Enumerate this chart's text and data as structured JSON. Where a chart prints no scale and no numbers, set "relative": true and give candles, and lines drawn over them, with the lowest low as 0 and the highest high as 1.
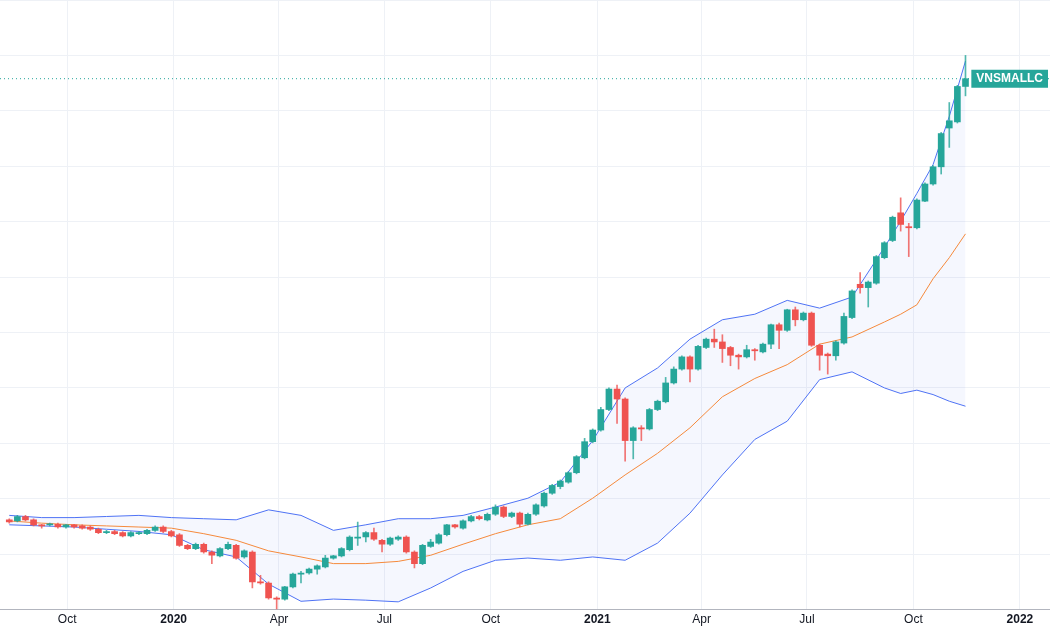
{
  "chart_data": {
    "type": "candlestick",
    "relative": true,
    "grid": true,
    "legend": false,
    "xlim": [
      "2019-08-04",
      "2022-01-27"
    ],
    "xticks": [
      {
        "value": "2019-10-01",
        "label": "Oct"
      },
      {
        "value": "2020-01-01",
        "label": "2020"
      },
      {
        "value": "2020-04-01",
        "label": "Apr"
      },
      {
        "value": "2020-07-01",
        "label": "Jul"
      },
      {
        "value": "2020-10-01",
        "label": "Oct"
      },
      {
        "value": "2021-01-01",
        "label": "2021"
      },
      {
        "value": "2021-04-01",
        "label": "Apr"
      },
      {
        "value": "2021-07-01",
        "label": "Jul"
      },
      {
        "value": "2021-10-01",
        "label": "Oct"
      },
      {
        "value": "2022-01-01",
        "label": "2022"
      }
    ],
    "x": [
      "2019-08-12",
      "2019-08-19",
      "2019-08-26",
      "2019-09-02",
      "2019-09-09",
      "2019-09-16",
      "2019-09-23",
      "2019-09-30",
      "2019-10-07",
      "2019-10-14",
      "2019-10-21",
      "2019-10-28",
      "2019-11-04",
      "2019-11-11",
      "2019-11-18",
      "2019-11-25",
      "2019-12-02",
      "2019-12-09",
      "2019-12-16",
      "2019-12-23",
      "2019-12-30",
      "2020-01-06",
      "2020-01-13",
      "2020-01-20",
      "2020-01-27",
      "2020-02-03",
      "2020-02-10",
      "2020-02-17",
      "2020-02-24",
      "2020-03-02",
      "2020-03-09",
      "2020-03-16",
      "2020-03-23",
      "2020-03-30",
      "2020-04-06",
      "2020-04-13",
      "2020-04-20",
      "2020-04-27",
      "2020-05-04",
      "2020-05-11",
      "2020-05-18",
      "2020-05-25",
      "2020-06-01",
      "2020-06-08",
      "2020-06-15",
      "2020-06-22",
      "2020-06-29",
      "2020-07-06",
      "2020-07-13",
      "2020-07-20",
      "2020-07-27",
      "2020-08-03",
      "2020-08-10",
      "2020-08-17",
      "2020-08-24",
      "2020-08-31",
      "2020-09-07",
      "2020-09-14",
      "2020-09-21",
      "2020-09-28",
      "2020-10-05",
      "2020-10-12",
      "2020-10-19",
      "2020-10-26",
      "2020-11-02",
      "2020-11-09",
      "2020-11-16",
      "2020-11-23",
      "2020-11-30",
      "2020-12-07",
      "2020-12-14",
      "2020-12-21",
      "2020-12-28",
      "2021-01-04",
      "2021-01-11",
      "2021-01-18",
      "2021-01-25",
      "2021-02-01",
      "2021-02-08",
      "2021-02-15",
      "2021-02-22",
      "2021-03-01",
      "2021-03-08",
      "2021-03-15",
      "2021-03-22",
      "2021-03-29",
      "2021-04-05",
      "2021-04-12",
      "2021-04-19",
      "2021-04-26",
      "2021-05-03",
      "2021-05-10",
      "2021-05-17",
      "2021-05-24",
      "2021-05-31",
      "2021-06-07",
      "2021-06-14",
      "2021-06-21",
      "2021-06-28",
      "2021-07-05",
      "2021-07-12",
      "2021-07-19",
      "2021-07-26",
      "2021-08-02",
      "2021-08-09",
      "2021-08-16",
      "2021-08-23",
      "2021-08-30",
      "2021-09-06",
      "2021-09-13",
      "2021-09-20",
      "2021-09-27",
      "2021-10-04",
      "2021-10-11",
      "2021-10-18",
      "2021-10-25",
      "2021-11-01",
      "2021-11-08",
      "2021-11-15"
    ],
    "ohlc": [
      [
        0.162,
        0.164,
        0.156,
        0.158
      ],
      [
        0.16,
        0.17,
        0.158,
        0.168
      ],
      [
        0.168,
        0.17,
        0.16,
        0.162
      ],
      [
        0.162,
        0.164,
        0.151,
        0.153
      ],
      [
        0.153,
        0.154,
        0.147,
        0.151
      ],
      [
        0.153,
        0.156,
        0.151,
        0.154
      ],
      [
        0.154,
        0.156,
        0.147,
        0.149
      ],
      [
        0.149,
        0.154,
        0.147,
        0.153
      ],
      [
        0.153,
        0.154,
        0.147,
        0.149
      ],
      [
        0.151,
        0.153,
        0.145,
        0.147
      ],
      [
        0.149,
        0.151,
        0.143,
        0.145
      ],
      [
        0.145,
        0.147,
        0.137,
        0.139
      ],
      [
        0.139,
        0.143,
        0.137,
        0.141
      ],
      [
        0.141,
        0.143,
        0.135,
        0.137
      ],
      [
        0.139,
        0.141,
        0.131,
        0.133
      ],
      [
        0.133,
        0.141,
        0.131,
        0.139
      ],
      [
        0.137,
        0.141,
        0.135,
        0.139
      ],
      [
        0.137,
        0.145,
        0.135,
        0.143
      ],
      [
        0.143,
        0.151,
        0.141,
        0.149
      ],
      [
        0.149,
        0.151,
        0.139,
        0.141
      ],
      [
        0.141,
        0.143,
        0.131,
        0.133
      ],
      [
        0.135,
        0.137,
        0.114,
        0.116
      ],
      [
        0.116,
        0.118,
        0.108,
        0.11
      ],
      [
        0.11,
        0.12,
        0.108,
        0.118
      ],
      [
        0.118,
        0.12,
        0.102,
        0.104
      ],
      [
        0.104,
        0.106,
        0.083,
        0.098
      ],
      [
        0.097,
        0.112,
        0.095,
        0.11
      ],
      [
        0.11,
        0.122,
        0.108,
        0.118
      ],
      [
        0.116,
        0.118,
        0.091,
        0.093
      ],
      [
        0.095,
        0.108,
        0.093,
        0.106
      ],
      [
        0.104,
        0.106,
        0.039,
        0.05
      ],
      [
        0.05,
        0.062,
        0.046,
        0.048
      ],
      [
        0.048,
        0.05,
        0.019,
        0.021
      ],
      [
        0.021,
        0.023,
        0,
        0.019
      ],
      [
        0.019,
        0.042,
        0.017,
        0.041
      ],
      [
        0.041,
        0.066,
        0.039,
        0.064
      ],
      [
        0.064,
        0.069,
        0.048,
        0.066
      ],
      [
        0.066,
        0.075,
        0.064,
        0.073
      ],
      [
        0.073,
        0.081,
        0.064,
        0.079
      ],
      [
        0.077,
        0.098,
        0.075,
        0.093
      ],
      [
        0.093,
        0.098,
        0.091,
        0.097
      ],
      [
        0.097,
        0.112,
        0.095,
        0.11
      ],
      [
        0.108,
        0.133,
        0.106,
        0.131
      ],
      [
        0.129,
        0.158,
        0.116,
        0.131
      ],
      [
        0.131,
        0.141,
        0.122,
        0.139
      ],
      [
        0.139,
        0.147,
        0.125,
        0.127
      ],
      [
        0.125,
        0.127,
        0.104,
        0.118
      ],
      [
        0.118,
        0.131,
        0.116,
        0.129
      ],
      [
        0.127,
        0.133,
        0.125,
        0.131
      ],
      [
        0.131,
        0.133,
        0.102,
        0.104
      ],
      [
        0.104,
        0.106,
        0.075,
        0.083
      ],
      [
        0.083,
        0.118,
        0.081,
        0.116
      ],
      [
        0.114,
        0.127,
        0.112,
        0.122
      ],
      [
        0.12,
        0.137,
        0.118,
        0.135
      ],
      [
        0.135,
        0.154,
        0.133,
        0.153
      ],
      [
        0.153,
        0.154,
        0.147,
        0.149
      ],
      [
        0.147,
        0.162,
        0.145,
        0.16
      ],
      [
        0.16,
        0.17,
        0.158,
        0.168
      ],
      [
        0.168,
        0.17,
        0.162,
        0.164
      ],
      [
        0.162,
        0.174,
        0.16,
        0.172
      ],
      [
        0.172,
        0.189,
        0.17,
        0.185
      ],
      [
        0.185,
        0.187,
        0.166,
        0.168
      ],
      [
        0.168,
        0.176,
        0.166,
        0.174
      ],
      [
        0.174,
        0.176,
        0.149,
        0.154
      ],
      [
        0.154,
        0.174,
        0.153,
        0.172
      ],
      [
        0.172,
        0.191,
        0.17,
        0.189
      ],
      [
        0.187,
        0.212,
        0.185,
        0.21
      ],
      [
        0.21,
        0.226,
        0.208,
        0.224
      ],
      [
        0.222,
        0.234,
        0.218,
        0.232
      ],
      [
        0.23,
        0.249,
        0.228,
        0.247
      ],
      [
        0.247,
        0.278,
        0.245,
        0.276
      ],
      [
        0.274,
        0.309,
        0.272,
        0.303
      ],
      [
        0.303,
        0.326,
        0.301,
        0.324
      ],
      [
        0.324,
        0.365,
        0.322,
        0.361
      ],
      [
        0.361,
        0.4,
        0.359,
        0.398
      ],
      [
        0.398,
        0.405,
        0.336,
        0.38
      ],
      [
        0.38,
        0.382,
        0.268,
        0.305
      ],
      [
        0.305,
        0.33,
        0.272,
        0.328
      ],
      [
        0.328,
        0.332,
        0.305,
        0.326
      ],
      [
        0.326,
        0.363,
        0.324,
        0.361
      ],
      [
        0.361,
        0.378,
        0.359,
        0.376
      ],
      [
        0.375,
        0.419,
        0.373,
        0.409
      ],
      [
        0.409,
        0.438,
        0.407,
        0.434
      ],
      [
        0.434,
        0.458,
        0.432,
        0.456
      ],
      [
        0.456,
        0.458,
        0.411,
        0.434
      ],
      [
        0.434,
        0.477,
        0.432,
        0.475
      ],
      [
        0.473,
        0.49,
        0.471,
        0.488
      ],
      [
        0.488,
        0.506,
        0.473,
        0.483
      ],
      [
        0.483,
        0.496,
        0.446,
        0.471
      ],
      [
        0.473,
        0.475,
        0.44,
        0.459
      ],
      [
        0.459,
        0.461,
        0.434,
        0.456
      ],
      [
        0.456,
        0.477,
        0.454,
        0.469
      ],
      [
        0.469,
        0.471,
        0.45,
        0.467
      ],
      [
        0.465,
        0.481,
        0.463,
        0.479
      ],
      [
        0.479,
        0.515,
        0.471,
        0.514
      ],
      [
        0.514,
        0.517,
        0.471,
        0.504
      ],
      [
        0.504,
        0.542,
        0.502,
        0.541
      ],
      [
        0.541,
        0.546,
        0.512,
        0.523
      ],
      [
        0.523,
        0.537,
        0.521,
        0.535
      ],
      [
        0.535,
        0.537,
        0.475,
        0.477
      ],
      [
        0.477,
        0.479,
        0.432,
        0.459
      ],
      [
        0.461,
        0.463,
        0.425,
        0.458
      ],
      [
        0.458,
        0.485,
        0.45,
        0.483
      ],
      [
        0.481,
        0.535,
        0.479,
        0.529
      ],
      [
        0.527,
        0.577,
        0.525,
        0.575
      ],
      [
        0.587,
        0.608,
        0.571,
        0.581
      ],
      [
        0.581,
        0.593,
        0.546,
        0.591
      ],
      [
        0.589,
        0.639,
        0.587,
        0.637
      ],
      [
        0.635,
        0.664,
        0.633,
        0.662
      ],
      [
        0.666,
        0.71,
        0.664,
        0.708
      ],
      [
        0.716,
        0.743,
        0.683,
        0.695
      ],
      [
        0.691,
        0.697,
        0.637,
        0.689
      ],
      [
        0.689,
        0.741,
        0.687,
        0.739
      ],
      [
        0.737,
        0.77,
        0.736,
        0.768
      ],
      [
        0.768,
        0.801,
        0.766,
        0.799
      ],
      [
        0.799,
        0.861,
        0.786,
        0.859
      ],
      [
        0.869,
        0.915,
        0.834,
        0.882
      ],
      [
        0.88,
        0.946,
        0.878,
        0.944
      ],
      [
        0.944,
        1,
        0.927,
        0.958
      ]
    ],
    "colors": [
      "#ef5350",
      "#26a69a",
      "#ef5350",
      "#ef5350",
      "#ef5350",
      "#26a69a",
      "#ef5350",
      "#26a69a",
      "#ef5350",
      "#ef5350",
      "#ef5350",
      "#ef5350",
      "#26a69a",
      "#ef5350",
      "#ef5350",
      "#26a69a",
      "#26a69a",
      "#26a69a",
      "#26a69a",
      "#ef5350",
      "#ef5350",
      "#ef5350",
      "#ef5350",
      "#26a69a",
      "#ef5350",
      "#ef5350",
      "#26a69a",
      "#26a69a",
      "#ef5350",
      "#26a69a",
      "#ef5350",
      "#ef5350",
      "#ef5350",
      "#ef5350",
      "#26a69a",
      "#26a69a",
      "#26a69a",
      "#26a69a",
      "#26a69a",
      "#26a69a",
      "#26a69a",
      "#26a69a",
      "#26a69a",
      "#26a69a",
      "#26a69a",
      "#ef5350",
      "#ef5350",
      "#26a69a",
      "#26a69a",
      "#ef5350",
      "#ef5350",
      "#26a69a",
      "#26a69a",
      "#26a69a",
      "#26a69a",
      "#ef5350",
      "#26a69a",
      "#26a69a",
      "#ef5350",
      "#26a69a",
      "#26a69a",
      "#ef5350",
      "#26a69a",
      "#ef5350",
      "#26a69a",
      "#26a69a",
      "#26a69a",
      "#26a69a",
      "#26a69a",
      "#26a69a",
      "#26a69a",
      "#26a69a",
      "#26a69a",
      "#26a69a",
      "#26a69a",
      "#ef5350",
      "#ef5350",
      "#26a69a",
      "#ef5350",
      "#26a69a",
      "#26a69a",
      "#26a69a",
      "#26a69a",
      "#26a69a",
      "#ef5350",
      "#26a69a",
      "#26a69a",
      "#ef5350",
      "#ef5350",
      "#ef5350",
      "#ef5350",
      "#26a69a",
      "#ef5350",
      "#26a69a",
      "#26a69a",
      "#ef5350",
      "#26a69a",
      "#ef5350",
      "#26a69a",
      "#ef5350",
      "#ef5350",
      "#ef5350",
      "#26a69a",
      "#26a69a",
      "#26a69a",
      "#ef5350",
      "#26a69a",
      "#26a69a",
      "#26a69a",
      "#26a69a",
      "#ef5350",
      "#ef5350",
      "#26a69a",
      "#26a69a",
      "#26a69a",
      "#26a69a",
      "#26a69a",
      "#26a69a",
      "#26a69a"
    ],
    "series": [
      {
        "type": "line",
        "color": "#4f73f5",
        "x": [
          "2019-08-12",
          "2019-09-09",
          "2019-10-07",
          "2019-11-04",
          "2019-12-02",
          "2019-12-30",
          "2020-01-27",
          "2020-02-24",
          "2020-03-23",
          "2020-04-20",
          "2020-05-18",
          "2020-06-15",
          "2020-07-13",
          "2020-08-10",
          "2020-09-07",
          "2020-10-05",
          "2020-11-02",
          "2020-11-30",
          "2020-12-28",
          "2021-01-25",
          "2021-02-22",
          "2021-03-22",
          "2021-04-19",
          "2021-05-17",
          "2021-06-14",
          "2021-07-12",
          "2021-08-09",
          "2021-09-06",
          "2021-09-20",
          "2021-10-04",
          "2021-10-18",
          "2021-11-01",
          "2021-11-15"
        ],
        "values": [
          0.17,
          0.166,
          0.166,
          0.168,
          0.17,
          0.166,
          0.164,
          0.162,
          0.18,
          0.17,
          0.143,
          0.153,
          0.164,
          0.164,
          0.17,
          0.185,
          0.201,
          0.23,
          0.305,
          0.4,
          0.436,
          0.488,
          0.523,
          0.533,
          0.558,
          0.544,
          0.564,
          0.654,
          0.701,
          0.751,
          0.803,
          0.89,
          0.99
        ]
      },
      {
        "type": "line",
        "color": "#f58a3c",
        "x": [
          "2019-08-12",
          "2019-09-09",
          "2019-10-07",
          "2019-11-04",
          "2019-12-02",
          "2019-12-30",
          "2020-01-27",
          "2020-02-24",
          "2020-03-23",
          "2020-04-20",
          "2020-05-18",
          "2020-06-15",
          "2020-07-13",
          "2020-08-10",
          "2020-09-07",
          "2020-10-05",
          "2020-11-02",
          "2020-11-30",
          "2020-12-28",
          "2021-01-25",
          "2021-02-22",
          "2021-03-22",
          "2021-04-19",
          "2021-05-17",
          "2021-06-14",
          "2021-07-12",
          "2021-08-09",
          "2021-09-06",
          "2021-09-20",
          "2021-10-04",
          "2021-10-18",
          "2021-11-01",
          "2021-11-15"
        ],
        "values": [
          0.16,
          0.156,
          0.153,
          0.151,
          0.149,
          0.147,
          0.137,
          0.125,
          0.106,
          0.095,
          0.083,
          0.083,
          0.087,
          0.098,
          0.118,
          0.137,
          0.153,
          0.164,
          0.201,
          0.243,
          0.282,
          0.328,
          0.384,
          0.417,
          0.442,
          0.479,
          0.492,
          0.519,
          0.533,
          0.55,
          0.597,
          0.635,
          0.678
        ],
        "upper": [
          0.17,
          0.166,
          0.166,
          0.168,
          0.17,
          0.166,
          0.164,
          0.162,
          0.18,
          0.17,
          0.143,
          0.153,
          0.164,
          0.164,
          0.17,
          0.185,
          0.201,
          0.23,
          0.305,
          0.4,
          0.436,
          0.488,
          0.523,
          0.533,
          0.558,
          0.544,
          0.564,
          0.654,
          0.701,
          0.751,
          0.803,
          0.89,
          0.99
        ],
        "lower": [
          0.153,
          0.151,
          0.149,
          0.145,
          0.141,
          0.135,
          0.108,
          0.095,
          0.046,
          0.015,
          0.019,
          0.017,
          0.014,
          0.039,
          0.069,
          0.089,
          0.093,
          0.089,
          0.095,
          0.089,
          0.12,
          0.174,
          0.243,
          0.307,
          0.34,
          0.415,
          0.429,
          0.4,
          0.39,
          0.396,
          0.388,
          0.376,
          0.367
        ]
      },
      {
        "type": "line",
        "color": "#4f73f5",
        "x": [
          "2019-08-12",
          "2019-09-09",
          "2019-10-07",
          "2019-11-04",
          "2019-12-02",
          "2019-12-30",
          "2020-01-27",
          "2020-02-24",
          "2020-03-23",
          "2020-04-20",
          "2020-05-18",
          "2020-06-15",
          "2020-07-13",
          "2020-08-10",
          "2020-09-07",
          "2020-10-05",
          "2020-11-02",
          "2020-11-30",
          "2020-12-28",
          "2021-01-25",
          "2021-02-22",
          "2021-03-22",
          "2021-04-19",
          "2021-05-17",
          "2021-06-14",
          "2021-07-12",
          "2021-08-09",
          "2021-09-06",
          "2021-09-20",
          "2021-10-04",
          "2021-10-18",
          "2021-11-01",
          "2021-11-15"
        ],
        "values": [
          0.153,
          0.151,
          0.149,
          0.145,
          0.141,
          0.135,
          0.108,
          0.095,
          0.046,
          0.015,
          0.019,
          0.017,
          0.014,
          0.039,
          0.069,
          0.089,
          0.093,
          0.089,
          0.095,
          0.089,
          0.12,
          0.174,
          0.243,
          0.307,
          0.34,
          0.415,
          0.429,
          0.4,
          0.39,
          0.396,
          0.388,
          0.376,
          0.367
        ]
      }
    ],
    "ref_lines": [
      {
        "axis": "y",
        "value": 0.958,
        "label": "VNSMALLC",
        "color": "#26a69a",
        "line_style": "dotted"
      }
    ]
  }
}
